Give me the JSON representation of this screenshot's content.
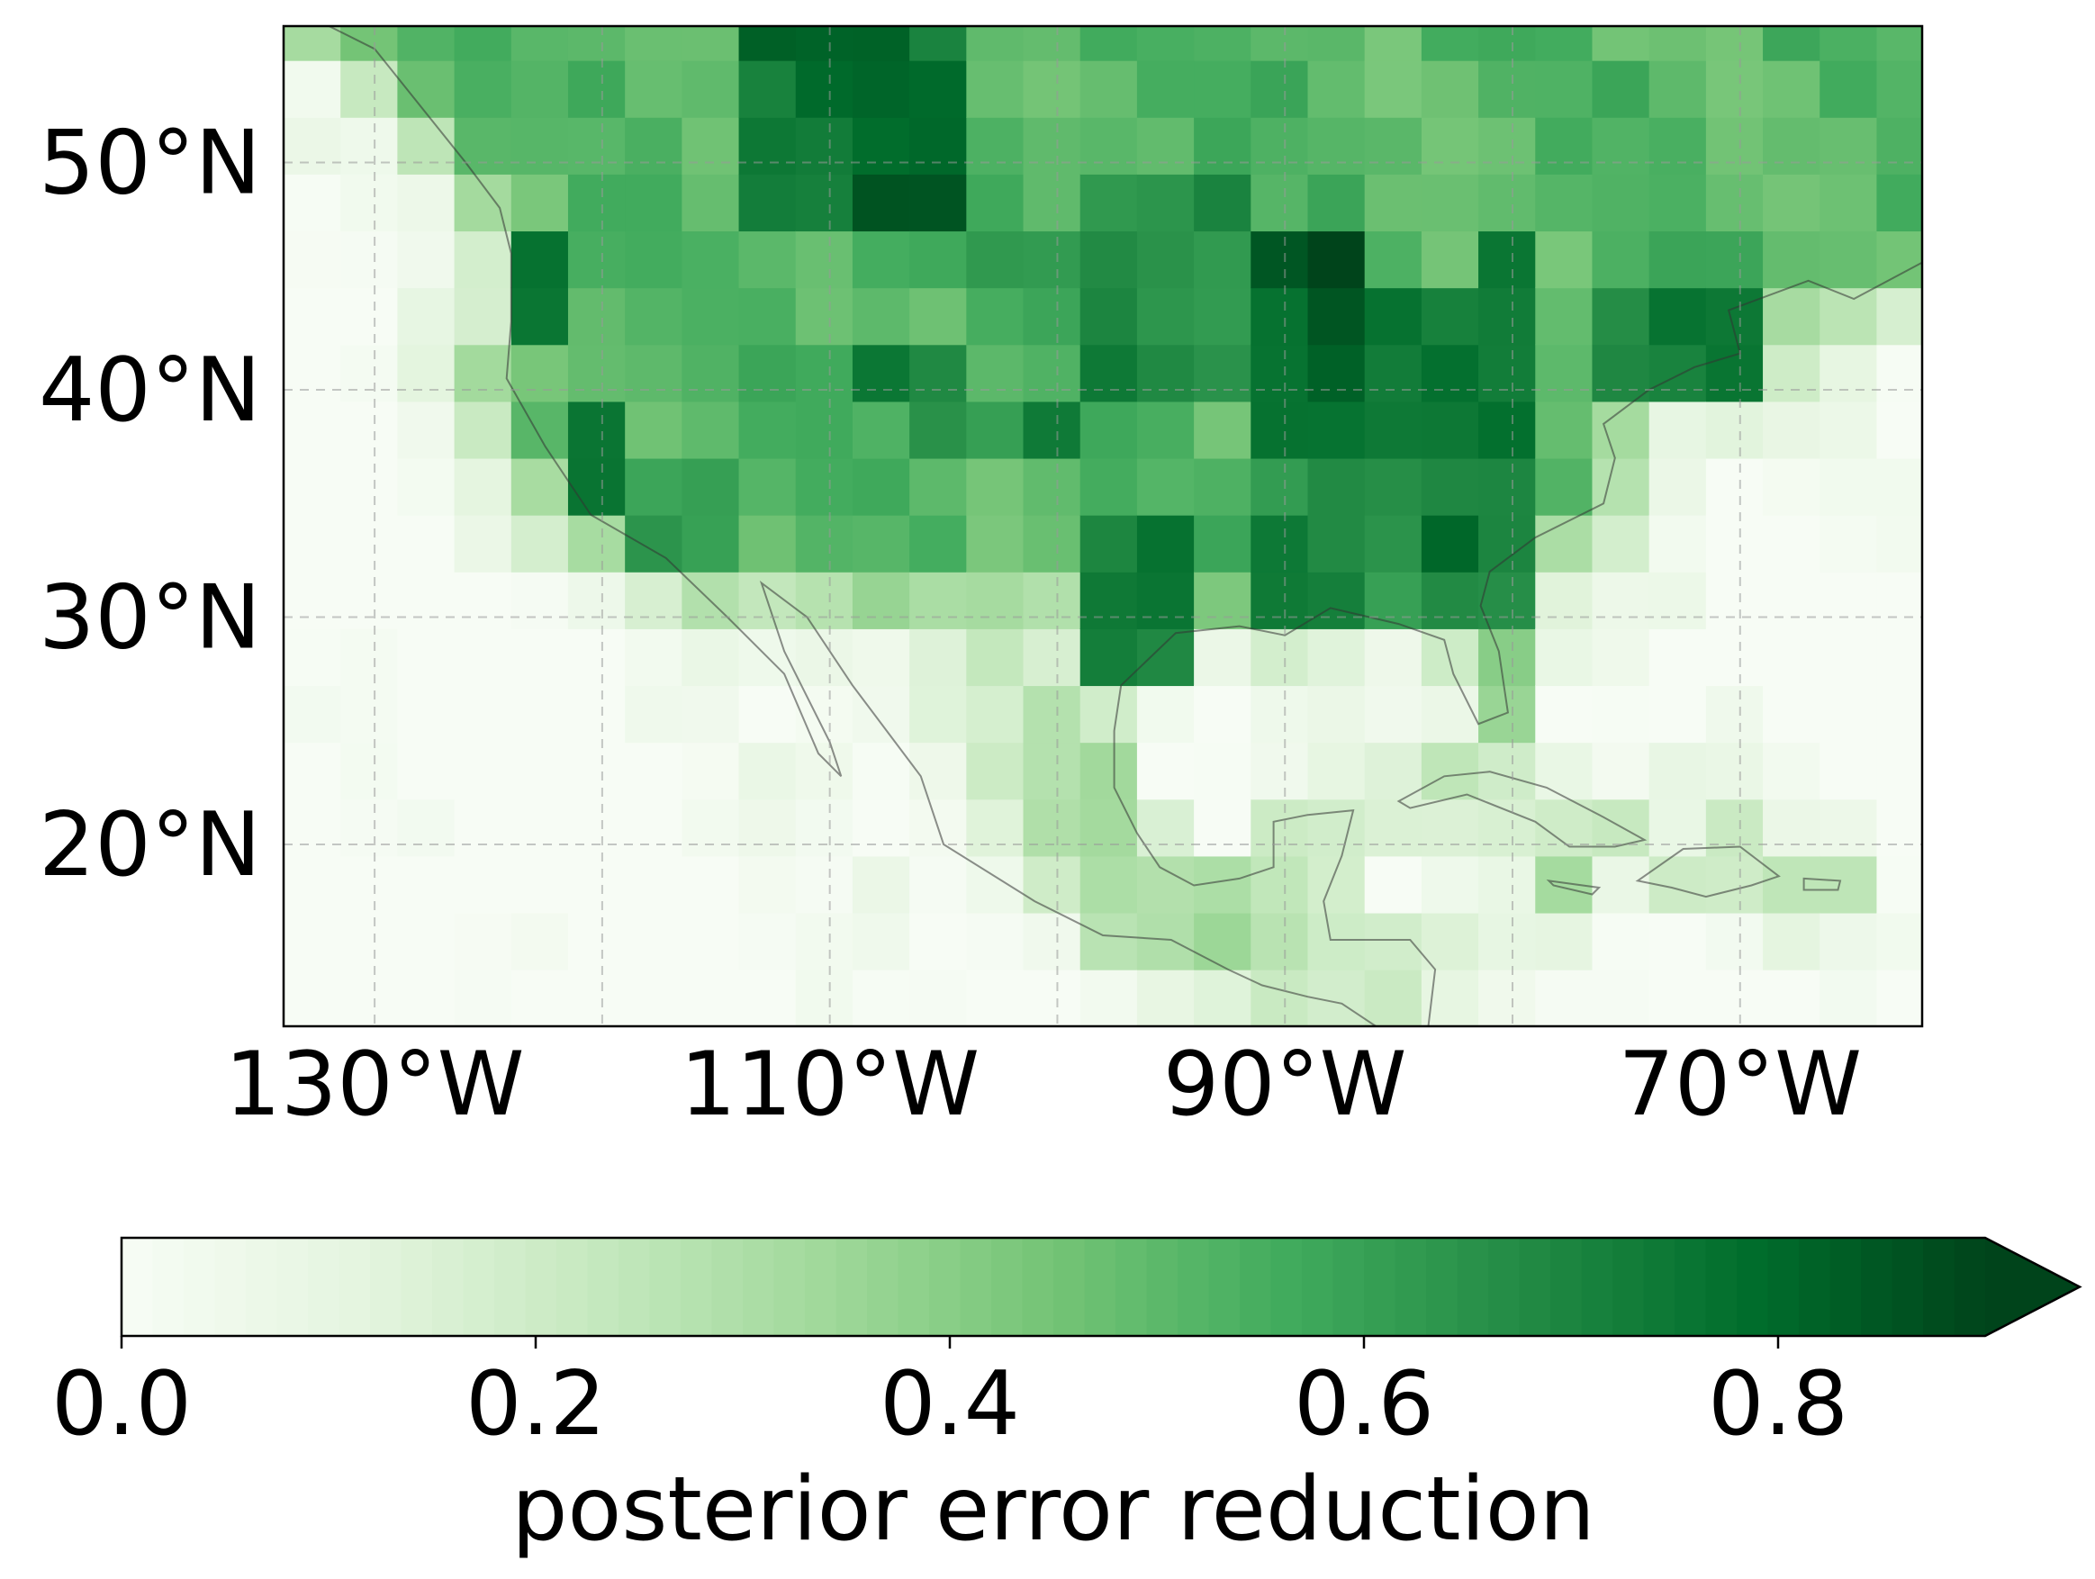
{
  "map": {
    "lon_range": [
      -134,
      -62
    ],
    "lat_range": [
      12,
      56
    ],
    "grid_step_deg": 2.5,
    "gridline_lons": [
      -130,
      -120,
      -110,
      -100,
      -90,
      -80,
      -70
    ],
    "gridline_lats": [
      20,
      30,
      40,
      50
    ],
    "lon_tick_labels": [
      "130°W",
      "110°W",
      "90°W",
      "70°W"
    ],
    "lon_tick_values": [
      -130,
      -110,
      -90,
      -70
    ],
    "lat_tick_labels": [
      "20°N",
      "30°N",
      "40°N",
      "50°N"
    ],
    "lat_tick_values": [
      20,
      30,
      40,
      50
    ],
    "colormap": "Greens"
  },
  "colorbar": {
    "label": "posterior error reduction",
    "range": [
      0,
      0.9
    ],
    "extend": "max",
    "tick_values": [
      0.0,
      0.2,
      0.4,
      0.6,
      0.8
    ],
    "tick_labels": [
      "0.0",
      "0.2",
      "0.4",
      "0.6",
      "0.8"
    ]
  },
  "chart_data": {
    "type": "heatmap",
    "xlabel": "",
    "ylabel": "",
    "x_unit": "degrees longitude",
    "y_unit": "degrees latitude",
    "value_name": "posterior error reduction",
    "vmin": 0,
    "vmax": 0.9,
    "grid": true,
    "regions": [
      {
        "lon": [
          -124,
          -121
        ],
        "lat": [
          41,
          47
        ],
        "value": 0.85
      },
      {
        "lon": [
          -122,
          -118
        ],
        "lat": [
          34,
          40
        ],
        "value": 0.82
      },
      {
        "lon": [
          -120,
          -115
        ],
        "lat": [
          32,
          36
        ],
        "value": 0.7
      },
      {
        "lon": [
          -115,
          -104
        ],
        "lat": [
          46,
          56
        ],
        "value": 0.82
      },
      {
        "lon": [
          -110,
          -100
        ],
        "lat": [
          44,
          48
        ],
        "value": 0.6
      },
      {
        "lon": [
          -110,
          -104
        ],
        "lat": [
          39,
          42
        ],
        "value": 0.8
      },
      {
        "lon": [
          -106,
          -100
        ],
        "lat": [
          36,
          40
        ],
        "value": 0.7
      },
      {
        "lon": [
          -100,
          -92
        ],
        "lat": [
          40,
          49
        ],
        "value": 0.72
      },
      {
        "lon": [
          -92,
          -87
        ],
        "lat": [
          38,
          46
        ],
        "value": 0.88
      },
      {
        "lon": [
          -87,
          -80
        ],
        "lat": [
          37,
          44
        ],
        "value": 0.74
      },
      {
        "lon": [
          -81,
          -78
        ],
        "lat": [
          42,
          46
        ],
        "value": 0.85
      },
      {
        "lon": [
          -76,
          -70
        ],
        "lat": [
          40,
          44
        ],
        "value": 0.76
      },
      {
        "lon": [
          -98,
          -93
        ],
        "lat": [
          28,
          35
        ],
        "value": 0.8
      },
      {
        "lon": [
          -92,
          -80
        ],
        "lat": [
          30,
          37
        ],
        "value": 0.72
      },
      {
        "lon": [
          -84,
          -81
        ],
        "lat": [
          31,
          34
        ],
        "value": 0.85
      },
      {
        "lon": [
          -82,
          -79
        ],
        "lat": [
          25,
          31
        ],
        "value": 0.45
      },
      {
        "lon": [
          -100,
          -96
        ],
        "lat": [
          26,
          30
        ],
        "value": 0.55
      },
      {
        "lon": [
          -102,
          -96
        ],
        "lat": [
          16,
          26
        ],
        "value": 0.3
      },
      {
        "lon": [
          -94,
          -90
        ],
        "lat": [
          15,
          18
        ],
        "value": 0.38
      }
    ]
  }
}
